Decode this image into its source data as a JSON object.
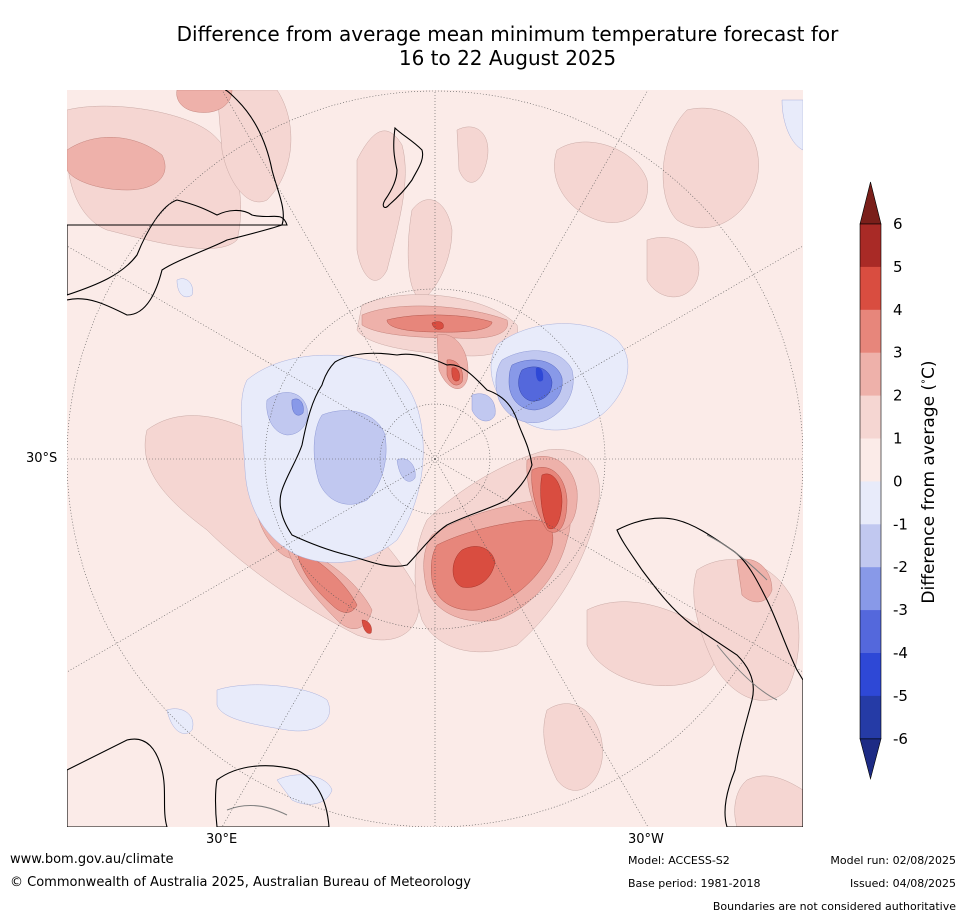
{
  "title": {
    "line1": "Difference from average mean minimum temperature forecast for",
    "line2": "16 to 22 August 2025"
  },
  "map": {
    "projection": "south-polar-stereographic",
    "lat_label": "30°S",
    "lon_label_east": "30°E",
    "lon_label_west": "30°W",
    "colors": {
      "ocean_base": "#fbebe8",
      "coast": "#000000",
      "border": "#808080",
      "grid": "#555555"
    }
  },
  "colorbar": {
    "label": "Difference from average (°C)",
    "label_prefix": "Difference from average (",
    "label_deg": "°",
    "label_suffix": "C)",
    "ticks": [
      "6",
      "5",
      "4",
      "3",
      "2",
      "1",
      "0",
      "-1",
      "-2",
      "-3",
      "-4",
      "-5",
      "-6"
    ],
    "top_extend_color": "#7a1f1a",
    "bottom_extend_color": "#1d2b85",
    "bands": [
      {
        "from": 6,
        "to": 5,
        "color": "#a92a26"
      },
      {
        "from": 5,
        "to": 4,
        "color": "#d94d40"
      },
      {
        "from": 4,
        "to": 3,
        "color": "#e7867b"
      },
      {
        "from": 3,
        "to": 2,
        "color": "#eeb1aa"
      },
      {
        "from": 2,
        "to": 1,
        "color": "#f5d6d2"
      },
      {
        "from": 1,
        "to": 0,
        "color": "#fbebe8"
      },
      {
        "from": 0,
        "to": -1,
        "color": "#e8ebfa"
      },
      {
        "from": -1,
        "to": -2,
        "color": "#c1c8f0"
      },
      {
        "from": -2,
        "to": -3,
        "color": "#8899e8"
      },
      {
        "from": -3,
        "to": -4,
        "color": "#5468dc"
      },
      {
        "from": -4,
        "to": -5,
        "color": "#2e48d6"
      },
      {
        "from": -5,
        "to": -6,
        "color": "#253ba6"
      }
    ]
  },
  "footer": {
    "website": "www.bom.gov.au/climate",
    "copyright": "© Commonwealth of Australia 2025, Australian Bureau of Meteorology",
    "model": "Model: ACCESS-S2",
    "base_period": "Base period: 1981-2018",
    "model_run": "Model run: 02/08/2025",
    "issued": "Issued: 04/08/2025",
    "boundaries": "Boundaries are not considered authoritative"
  }
}
